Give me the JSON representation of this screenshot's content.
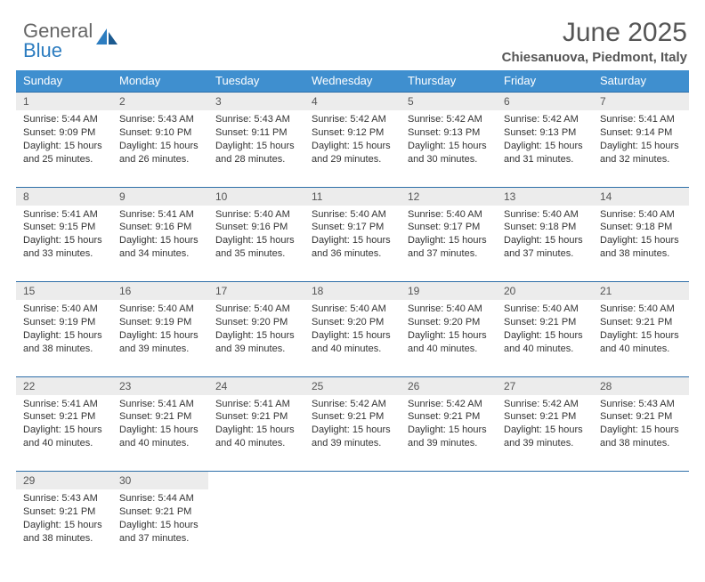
{
  "logo": {
    "word1": "General",
    "word2": "Blue"
  },
  "title": "June 2025",
  "subtitle": "Chiesanuova, Piedmont, Italy",
  "dayHeaders": [
    "Sunday",
    "Monday",
    "Tuesday",
    "Wednesday",
    "Thursday",
    "Friday",
    "Saturday"
  ],
  "colors": {
    "header_bg": "#3f8fcf",
    "row_border": "#2d6ea8",
    "daynum_bg": "#ececec",
    "text": "#333333",
    "title": "#555555",
    "logo_gray": "#666666",
    "logo_blue": "#2d7dc0"
  },
  "weeks": [
    [
      {
        "n": "1",
        "sr": "5:44 AM",
        "ss": "9:09 PM",
        "dl": "15 hours and 25 minutes."
      },
      {
        "n": "2",
        "sr": "5:43 AM",
        "ss": "9:10 PM",
        "dl": "15 hours and 26 minutes."
      },
      {
        "n": "3",
        "sr": "5:43 AM",
        "ss": "9:11 PM",
        "dl": "15 hours and 28 minutes."
      },
      {
        "n": "4",
        "sr": "5:42 AM",
        "ss": "9:12 PM",
        "dl": "15 hours and 29 minutes."
      },
      {
        "n": "5",
        "sr": "5:42 AM",
        "ss": "9:13 PM",
        "dl": "15 hours and 30 minutes."
      },
      {
        "n": "6",
        "sr": "5:42 AM",
        "ss": "9:13 PM",
        "dl": "15 hours and 31 minutes."
      },
      {
        "n": "7",
        "sr": "5:41 AM",
        "ss": "9:14 PM",
        "dl": "15 hours and 32 minutes."
      }
    ],
    [
      {
        "n": "8",
        "sr": "5:41 AM",
        "ss": "9:15 PM",
        "dl": "15 hours and 33 minutes."
      },
      {
        "n": "9",
        "sr": "5:41 AM",
        "ss": "9:16 PM",
        "dl": "15 hours and 34 minutes."
      },
      {
        "n": "10",
        "sr": "5:40 AM",
        "ss": "9:16 PM",
        "dl": "15 hours and 35 minutes."
      },
      {
        "n": "11",
        "sr": "5:40 AM",
        "ss": "9:17 PM",
        "dl": "15 hours and 36 minutes."
      },
      {
        "n": "12",
        "sr": "5:40 AM",
        "ss": "9:17 PM",
        "dl": "15 hours and 37 minutes."
      },
      {
        "n": "13",
        "sr": "5:40 AM",
        "ss": "9:18 PM",
        "dl": "15 hours and 37 minutes."
      },
      {
        "n": "14",
        "sr": "5:40 AM",
        "ss": "9:18 PM",
        "dl": "15 hours and 38 minutes."
      }
    ],
    [
      {
        "n": "15",
        "sr": "5:40 AM",
        "ss": "9:19 PM",
        "dl": "15 hours and 38 minutes."
      },
      {
        "n": "16",
        "sr": "5:40 AM",
        "ss": "9:19 PM",
        "dl": "15 hours and 39 minutes."
      },
      {
        "n": "17",
        "sr": "5:40 AM",
        "ss": "9:20 PM",
        "dl": "15 hours and 39 minutes."
      },
      {
        "n": "18",
        "sr": "5:40 AM",
        "ss": "9:20 PM",
        "dl": "15 hours and 40 minutes."
      },
      {
        "n": "19",
        "sr": "5:40 AM",
        "ss": "9:20 PM",
        "dl": "15 hours and 40 minutes."
      },
      {
        "n": "20",
        "sr": "5:40 AM",
        "ss": "9:21 PM",
        "dl": "15 hours and 40 minutes."
      },
      {
        "n": "21",
        "sr": "5:40 AM",
        "ss": "9:21 PM",
        "dl": "15 hours and 40 minutes."
      }
    ],
    [
      {
        "n": "22",
        "sr": "5:41 AM",
        "ss": "9:21 PM",
        "dl": "15 hours and 40 minutes."
      },
      {
        "n": "23",
        "sr": "5:41 AM",
        "ss": "9:21 PM",
        "dl": "15 hours and 40 minutes."
      },
      {
        "n": "24",
        "sr": "5:41 AM",
        "ss": "9:21 PM",
        "dl": "15 hours and 40 minutes."
      },
      {
        "n": "25",
        "sr": "5:42 AM",
        "ss": "9:21 PM",
        "dl": "15 hours and 39 minutes."
      },
      {
        "n": "26",
        "sr": "5:42 AM",
        "ss": "9:21 PM",
        "dl": "15 hours and 39 minutes."
      },
      {
        "n": "27",
        "sr": "5:42 AM",
        "ss": "9:21 PM",
        "dl": "15 hours and 39 minutes."
      },
      {
        "n": "28",
        "sr": "5:43 AM",
        "ss": "9:21 PM",
        "dl": "15 hours and 38 minutes."
      }
    ],
    [
      {
        "n": "29",
        "sr": "5:43 AM",
        "ss": "9:21 PM",
        "dl": "15 hours and 38 minutes."
      },
      {
        "n": "30",
        "sr": "5:44 AM",
        "ss": "9:21 PM",
        "dl": "15 hours and 37 minutes."
      },
      null,
      null,
      null,
      null,
      null
    ]
  ],
  "labels": {
    "sunrise": "Sunrise: ",
    "sunset": "Sunset: ",
    "daylight": "Daylight: "
  }
}
